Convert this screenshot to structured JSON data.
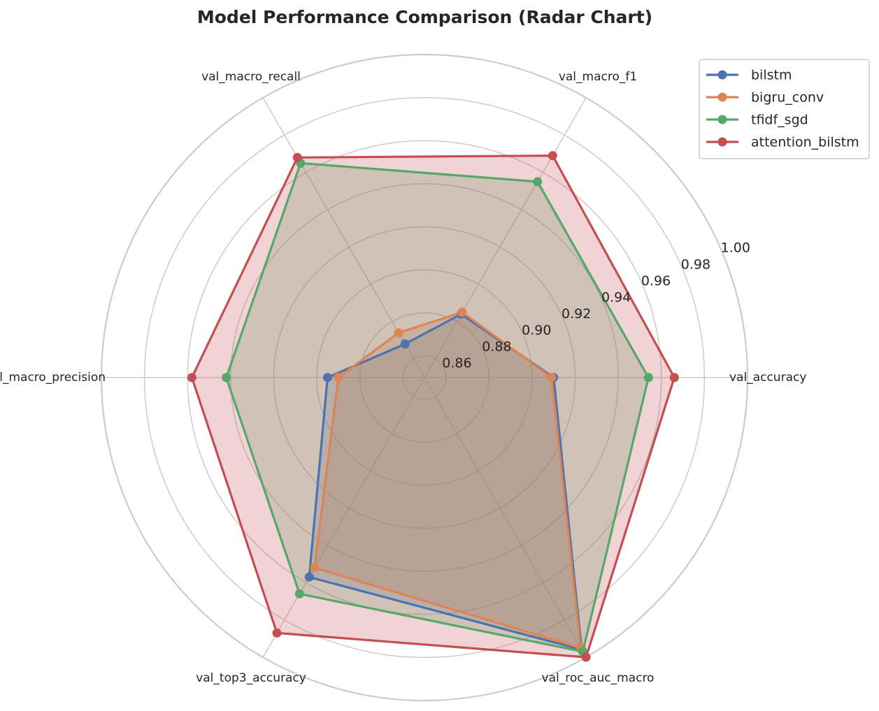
{
  "chart_data": {
    "type": "radar",
    "title": "Model Performance Comparison (Radar Chart)",
    "axes": [
      "val_accuracy",
      "val_macro_f1",
      "val_macro_recall",
      "val_macro_precision",
      "val_top3_accuracy",
      "val_roc_auc_macro"
    ],
    "rlim": [
      0.85,
      1.0
    ],
    "rticks": [
      "0.86",
      "0.88",
      "0.90",
      "0.92",
      "0.94",
      "0.96",
      "0.98",
      "1.00"
    ],
    "grid": true,
    "legend_position": "top-right",
    "series": [
      {
        "name": "bilstm",
        "color": "#4c72b0",
        "values": [
          0.91,
          0.884,
          0.868,
          0.895,
          0.957,
          0.996
        ]
      },
      {
        "name": "bigru_conv",
        "color": "#dd8452",
        "values": [
          0.909,
          0.885,
          0.874,
          0.89,
          0.952,
          0.995
        ]
      },
      {
        "name": "tfidf_sgd",
        "color": "#55a868",
        "values": [
          0.954,
          0.955,
          0.965,
          0.942,
          0.966,
          0.997
        ]
      },
      {
        "name": "attention_bilstm",
        "color": "#c44e52",
        "values": [
          0.966,
          0.969,
          0.968,
          0.958,
          0.987,
          1.0
        ]
      }
    ]
  }
}
